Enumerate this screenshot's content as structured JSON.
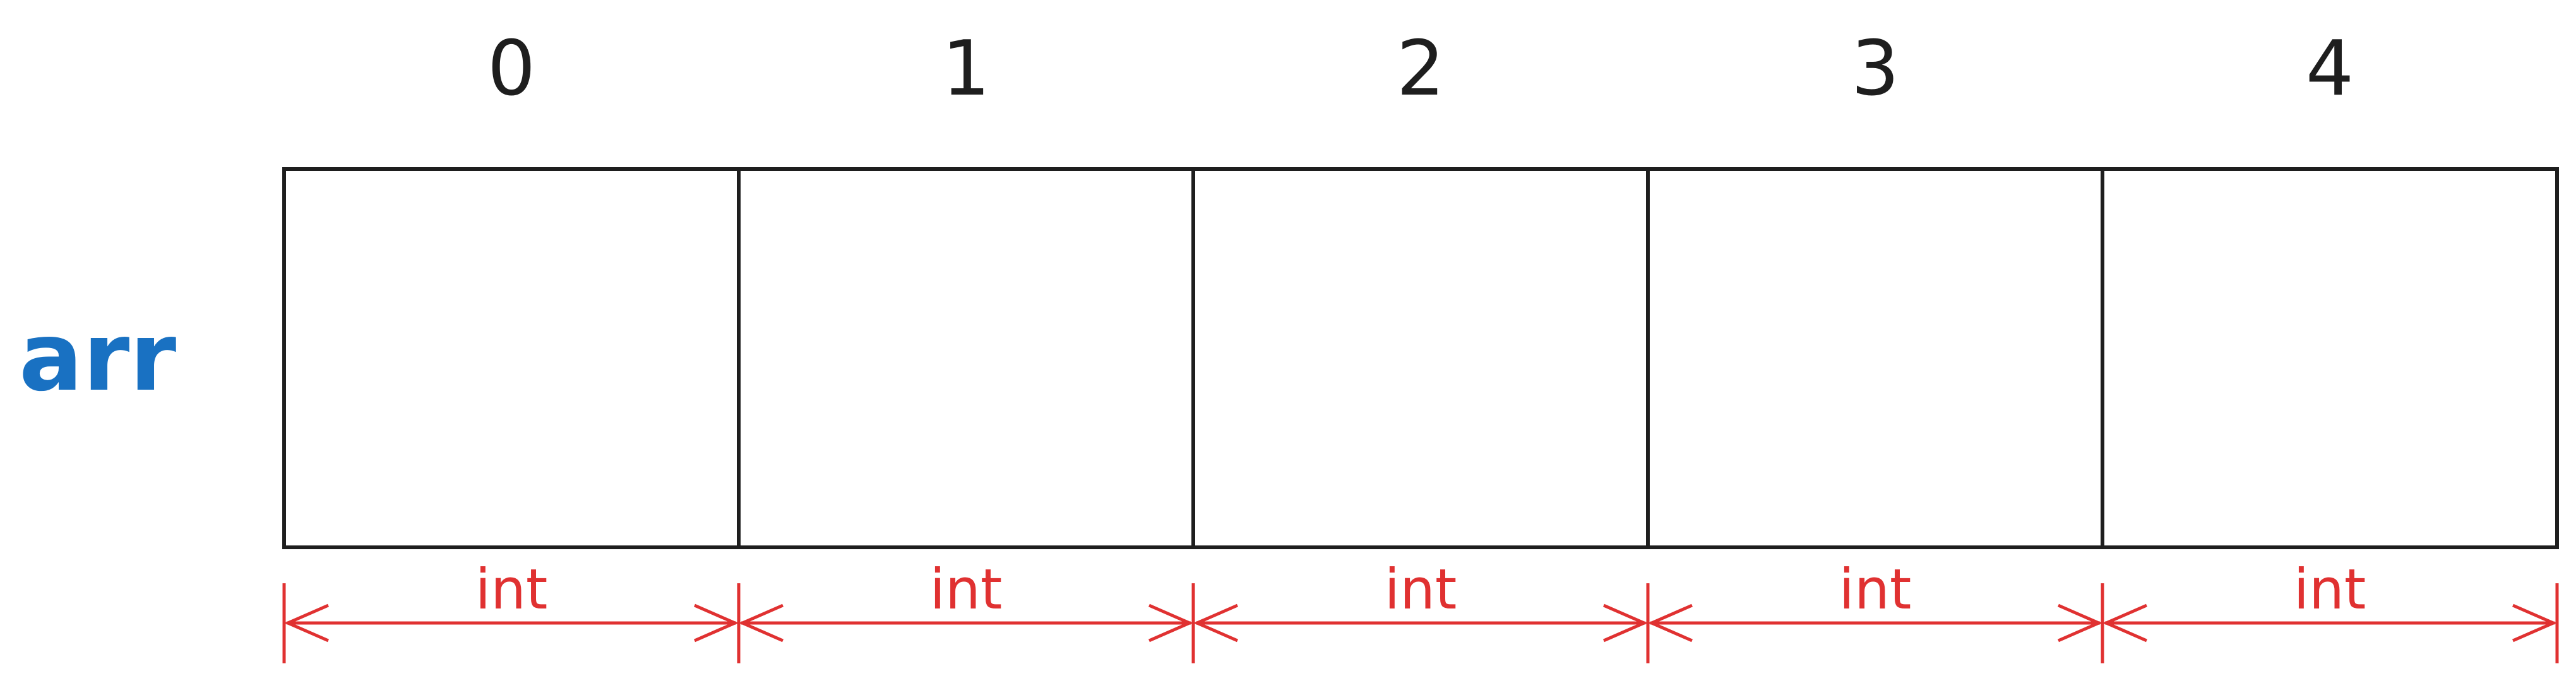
{
  "array_label": "arr",
  "indices": [
    "0",
    "1",
    "2",
    "3",
    "4"
  ],
  "element_type": "int",
  "colors": {
    "stroke": "#1e1e1e",
    "array_label": "#1971c2",
    "type_annotation": "#e03131"
  }
}
